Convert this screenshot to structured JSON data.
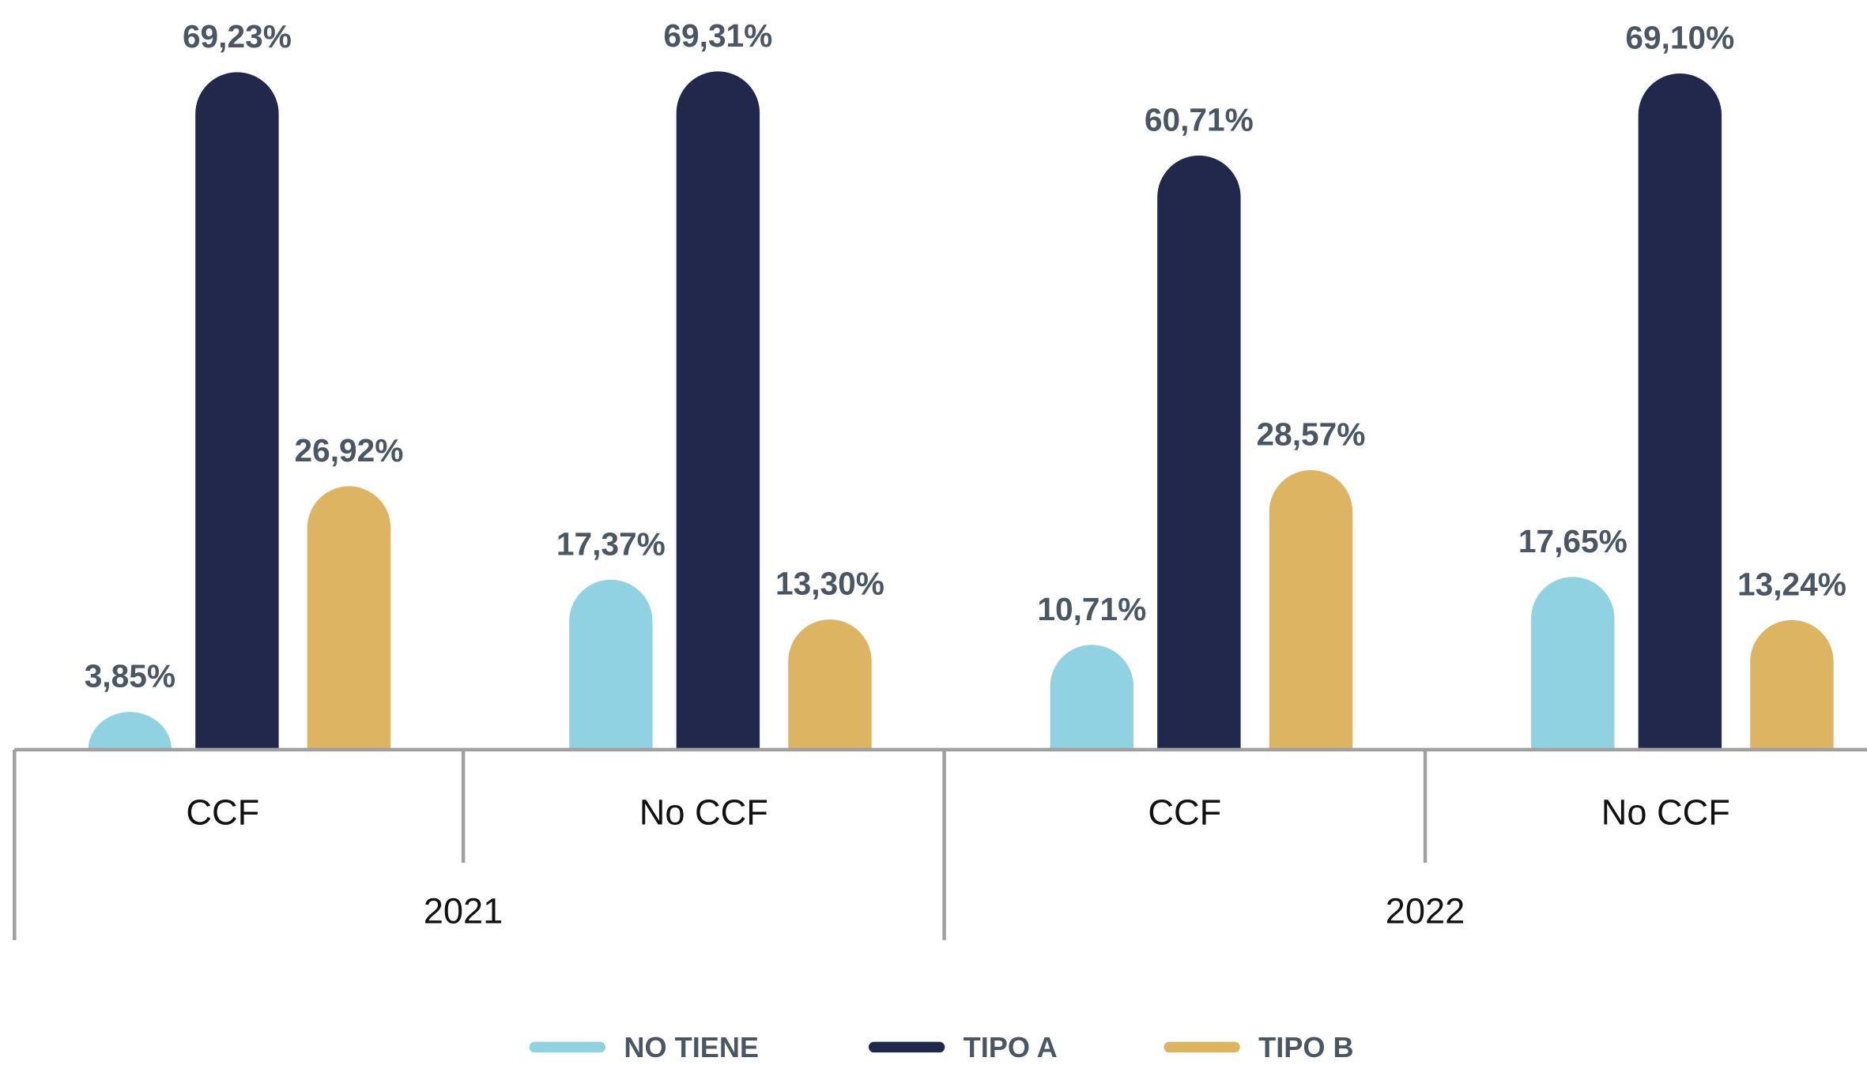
{
  "chart_data": {
    "type": "bar",
    "categories": [
      "CCF",
      "No CCF",
      "CCF",
      "No CCF"
    ],
    "groups": [
      "2021",
      "2022"
    ],
    "series": [
      {
        "name": "NO TIENE",
        "color": "#90d1e2",
        "values": [
          3.85,
          17.37,
          10.71,
          17.65
        ],
        "value_labels": [
          "3,85%",
          "17,37%",
          "10,71%",
          "17,65%"
        ]
      },
      {
        "name": "TIPO A",
        "color": "#21284b",
        "values": [
          69.23,
          69.31,
          60.71,
          69.1
        ],
        "value_labels": [
          "69,23%",
          "69,31%",
          "60,71%",
          "69,10%"
        ]
      },
      {
        "name": "TIPO B",
        "color": "#dcb462",
        "values": [
          26.92,
          13.3,
          28.57,
          13.24
        ],
        "value_labels": [
          "26,92%",
          "13,30%",
          "28,57%",
          "13,24%"
        ]
      }
    ],
    "legend": "bottom"
  }
}
